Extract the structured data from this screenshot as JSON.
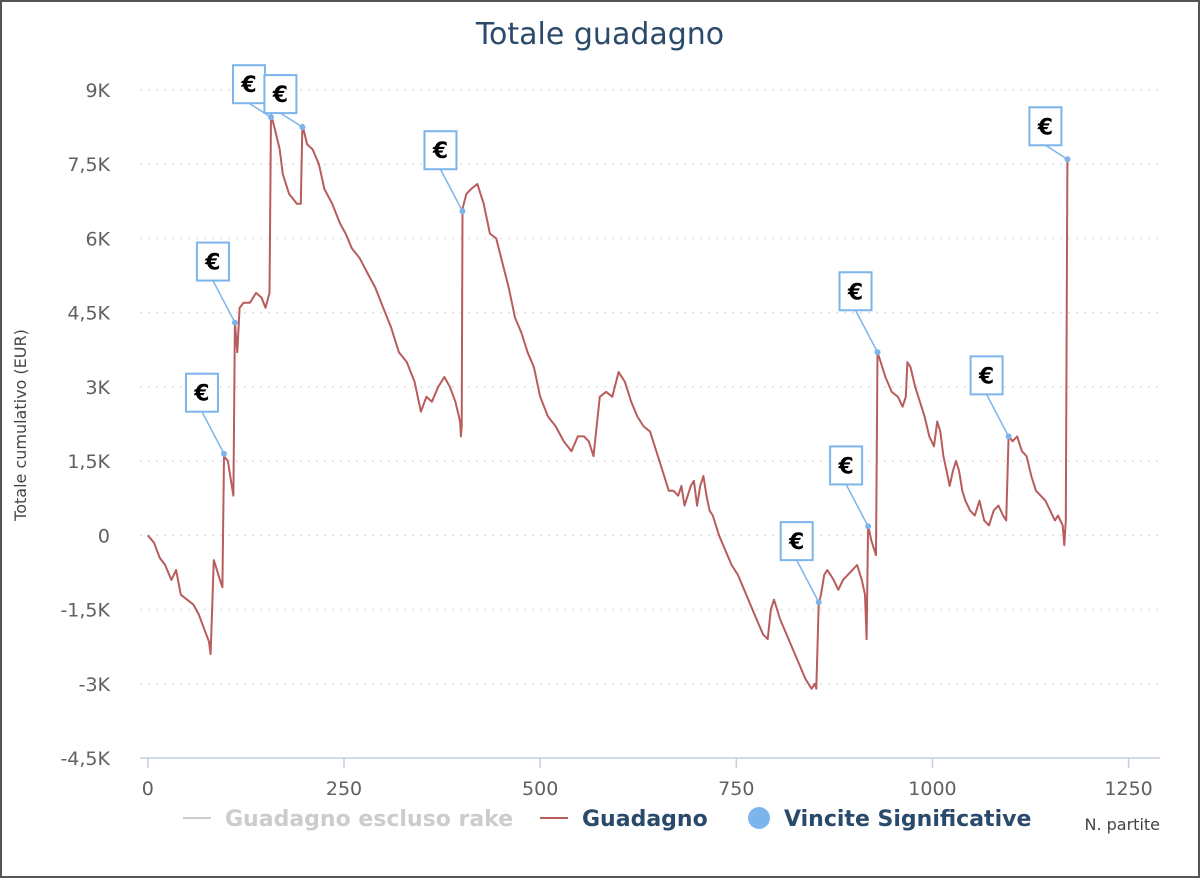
{
  "chart_data": {
    "type": "line",
    "title": "Totale guadagno",
    "ylabel": "Totale cumulativo (EUR)",
    "xlabel": "N. partite",
    "xlim": [
      -10,
      1290
    ],
    "ylim": [
      -4500,
      9000
    ],
    "x_ticks": [
      {
        "value": 0,
        "label": "0"
      },
      {
        "value": 250,
        "label": "250"
      },
      {
        "value": 500,
        "label": "500"
      },
      {
        "value": 750,
        "label": "750"
      },
      {
        "value": 1000,
        "label": "1000"
      },
      {
        "value": 1250,
        "label": "1250"
      }
    ],
    "y_ticks": [
      {
        "value": 9000,
        "label": "9K"
      },
      {
        "value": 7500,
        "label": "7,5K"
      },
      {
        "value": 6000,
        "label": "6K"
      },
      {
        "value": 4500,
        "label": "4,5K"
      },
      {
        "value": 3000,
        "label": "3K"
      },
      {
        "value": 1500,
        "label": "1,5K"
      },
      {
        "value": 0,
        "label": "0"
      },
      {
        "value": -1500,
        "label": "-1,5K"
      },
      {
        "value": -3000,
        "label": "-3K"
      },
      {
        "value": -4500,
        "label": "-4,5K"
      }
    ],
    "grid": "horizontal dotted",
    "legend_position": "bottom",
    "colors": {
      "guadagno": "#b85c5c",
      "escluso_rake": "#cccccc",
      "vincite": "#7cb5ec",
      "title": "#2a4a6b",
      "legend_active": "#2a4a6b",
      "legend_inactive": "#cccccc"
    },
    "series": [
      {
        "name": "Guadagno",
        "color": "#b85c5c",
        "points": [
          [
            0,
            0
          ],
          [
            8,
            -150
          ],
          [
            15,
            -450
          ],
          [
            22,
            -600
          ],
          [
            30,
            -900
          ],
          [
            36,
            -700
          ],
          [
            42,
            -1200
          ],
          [
            50,
            -1300
          ],
          [
            58,
            -1400
          ],
          [
            65,
            -1600
          ],
          [
            72,
            -1900
          ],
          [
            78,
            -2150
          ],
          [
            80,
            -2400
          ],
          [
            84,
            -500
          ],
          [
            88,
            -700
          ],
          [
            92,
            -900
          ],
          [
            95,
            -1050
          ],
          [
            97,
            1600
          ],
          [
            102,
            1500
          ],
          [
            107,
            1000
          ],
          [
            109,
            800
          ],
          [
            111,
            4300
          ],
          [
            114,
            3700
          ],
          [
            117,
            4600
          ],
          [
            122,
            4700
          ],
          [
            130,
            4700
          ],
          [
            138,
            4900
          ],
          [
            145,
            4800
          ],
          [
            150,
            4600
          ],
          [
            155,
            4900
          ],
          [
            157,
            8500
          ],
          [
            162,
            8200
          ],
          [
            168,
            7800
          ],
          [
            172,
            7300
          ],
          [
            180,
            6900
          ],
          [
            190,
            6700
          ],
          [
            195,
            6700
          ],
          [
            197,
            8300
          ],
          [
            203,
            7900
          ],
          [
            210,
            7800
          ],
          [
            218,
            7500
          ],
          [
            225,
            7000
          ],
          [
            235,
            6700
          ],
          [
            245,
            6300
          ],
          [
            252,
            6100
          ],
          [
            260,
            5800
          ],
          [
            270,
            5600
          ],
          [
            280,
            5300
          ],
          [
            290,
            5000
          ],
          [
            300,
            4600
          ],
          [
            310,
            4200
          ],
          [
            320,
            3700
          ],
          [
            330,
            3500
          ],
          [
            340,
            3100
          ],
          [
            348,
            2500
          ],
          [
            355,
            2800
          ],
          [
            362,
            2700
          ],
          [
            370,
            3000
          ],
          [
            378,
            3200
          ],
          [
            385,
            3000
          ],
          [
            392,
            2700
          ],
          [
            398,
            2300
          ],
          [
            399,
            2000
          ],
          [
            400,
            2200
          ],
          [
            401,
            6600
          ],
          [
            406,
            6900
          ],
          [
            412,
            7000
          ],
          [
            420,
            7100
          ],
          [
            428,
            6700
          ],
          [
            436,
            6100
          ],
          [
            444,
            6000
          ],
          [
            452,
            5500
          ],
          [
            460,
            5000
          ],
          [
            468,
            4400
          ],
          [
            476,
            4100
          ],
          [
            484,
            3700
          ],
          [
            492,
            3400
          ],
          [
            500,
            2800
          ],
          [
            510,
            2400
          ],
          [
            520,
            2200
          ],
          [
            530,
            1900
          ],
          [
            540,
            1700
          ],
          [
            548,
            2000
          ],
          [
            556,
            2000
          ],
          [
            562,
            1900
          ],
          [
            568,
            1600
          ],
          [
            576,
            2800
          ],
          [
            584,
            2900
          ],
          [
            592,
            2800
          ],
          [
            600,
            3300
          ],
          [
            608,
            3100
          ],
          [
            616,
            2700
          ],
          [
            624,
            2400
          ],
          [
            632,
            2200
          ],
          [
            640,
            2100
          ],
          [
            648,
            1700
          ],
          [
            656,
            1300
          ],
          [
            664,
            900
          ],
          [
            670,
            900
          ],
          [
            676,
            800
          ],
          [
            680,
            1000
          ],
          [
            684,
            600
          ],
          [
            688,
            800
          ],
          [
            692,
            1000
          ],
          [
            696,
            1100
          ],
          [
            700,
            600
          ],
          [
            704,
            1000
          ],
          [
            708,
            1200
          ],
          [
            712,
            800
          ],
          [
            716,
            500
          ],
          [
            720,
            400
          ],
          [
            728,
            0
          ],
          [
            736,
            -300
          ],
          [
            744,
            -600
          ],
          [
            752,
            -800
          ],
          [
            760,
            -1100
          ],
          [
            768,
            -1400
          ],
          [
            776,
            -1700
          ],
          [
            784,
            -2000
          ],
          [
            790,
            -2100
          ],
          [
            794,
            -1500
          ],
          [
            798,
            -1300
          ],
          [
            806,
            -1700
          ],
          [
            814,
            -2000
          ],
          [
            822,
            -2300
          ],
          [
            830,
            -2600
          ],
          [
            838,
            -2900
          ],
          [
            842,
            -3000
          ],
          [
            846,
            -3100
          ],
          [
            850,
            -3000
          ],
          [
            852,
            -3100
          ],
          [
            855,
            -1400
          ],
          [
            858,
            -1200
          ],
          [
            862,
            -800
          ],
          [
            866,
            -700
          ],
          [
            870,
            -800
          ],
          [
            874,
            -900
          ],
          [
            880,
            -1100
          ],
          [
            886,
            -900
          ],
          [
            892,
            -800
          ],
          [
            898,
            -700
          ],
          [
            904,
            -600
          ],
          [
            910,
            -900
          ],
          [
            914,
            -1200
          ],
          [
            916,
            -2100
          ],
          [
            918,
            200
          ],
          [
            922,
            -100
          ],
          [
            926,
            -300
          ],
          [
            928,
            -400
          ],
          [
            930,
            3700
          ],
          [
            934,
            3500
          ],
          [
            940,
            3200
          ],
          [
            948,
            2900
          ],
          [
            956,
            2800
          ],
          [
            962,
            2600
          ],
          [
            966,
            2800
          ],
          [
            968,
            3500
          ],
          [
            972,
            3400
          ],
          [
            978,
            3000
          ],
          [
            984,
            2700
          ],
          [
            990,
            2400
          ],
          [
            996,
            2000
          ],
          [
            1002,
            1800
          ],
          [
            1006,
            2300
          ],
          [
            1010,
            2100
          ],
          [
            1014,
            1600
          ],
          [
            1018,
            1300
          ],
          [
            1022,
            1000
          ],
          [
            1026,
            1300
          ],
          [
            1030,
            1500
          ],
          [
            1034,
            1300
          ],
          [
            1038,
            900
          ],
          [
            1042,
            700
          ],
          [
            1048,
            500
          ],
          [
            1054,
            400
          ],
          [
            1060,
            700
          ],
          [
            1066,
            300
          ],
          [
            1072,
            200
          ],
          [
            1078,
            500
          ],
          [
            1084,
            600
          ],
          [
            1090,
            400
          ],
          [
            1094,
            300
          ],
          [
            1097,
            2000
          ],
          [
            1102,
            1900
          ],
          [
            1108,
            2000
          ],
          [
            1114,
            1700
          ],
          [
            1120,
            1600
          ],
          [
            1126,
            1200
          ],
          [
            1132,
            900
          ],
          [
            1138,
            800
          ],
          [
            1144,
            700
          ],
          [
            1150,
            500
          ],
          [
            1156,
            300
          ],
          [
            1160,
            400
          ],
          [
            1166,
            200
          ],
          [
            1168,
            -200
          ],
          [
            1170,
            300
          ],
          [
            1172,
            7600
          ]
        ]
      }
    ],
    "markers": {
      "name": "Vincite Significative",
      "symbol": "€",
      "points": [
        [
          97,
          1650
        ],
        [
          111,
          4300
        ],
        [
          157,
          8450
        ],
        [
          197,
          8250
        ],
        [
          401,
          6550
        ],
        [
          855,
          -1350
        ],
        [
          918,
          180
        ],
        [
          930,
          3700
        ],
        [
          1097,
          2000
        ],
        [
          1172,
          7600
        ]
      ]
    },
    "legend": [
      {
        "label": "Guadagno escluso rake",
        "state": "hidden",
        "symbol": "line"
      },
      {
        "label": "Guadagno",
        "state": "visible",
        "symbol": "line"
      },
      {
        "label": "Vincite Significative",
        "state": "visible",
        "symbol": "circle"
      }
    ]
  }
}
